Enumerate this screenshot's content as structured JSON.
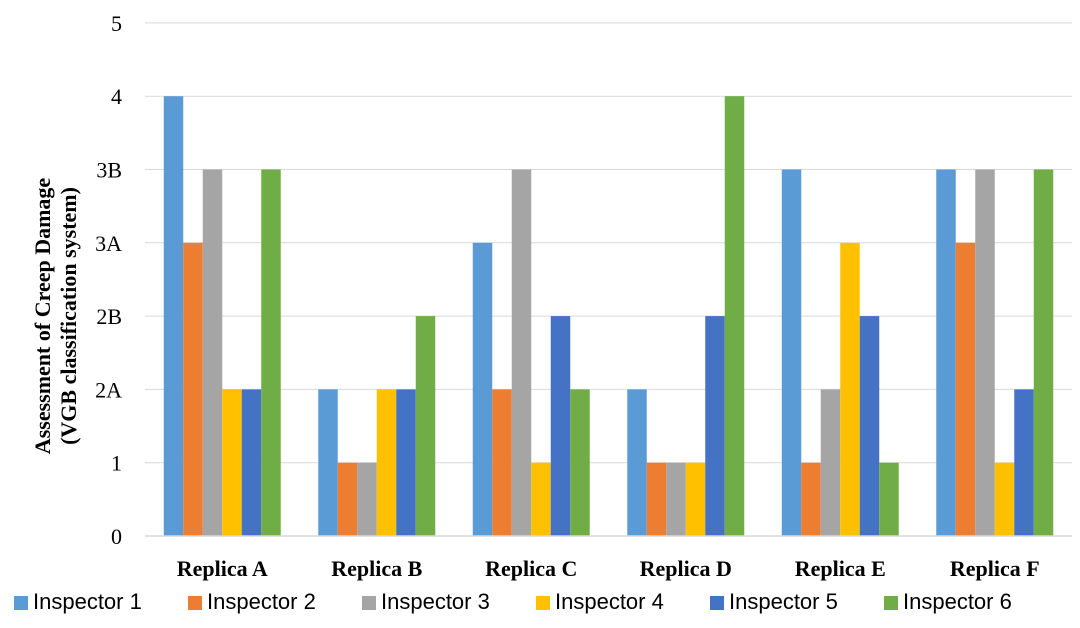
{
  "chart_data": {
    "type": "bar",
    "ylabel_line1": "Assessment of Creep Damage",
    "ylabel_line2": "(VGB classification system)",
    "y_levels": [
      "0",
      "1",
      "2A",
      "2B",
      "3A",
      "3B",
      "4",
      "5"
    ],
    "categories": [
      "Replica A",
      "Replica B",
      "Replica C",
      "Replica D",
      "Replica E",
      "Replica F"
    ],
    "series": [
      {
        "name": "Inspector 1",
        "color": "#5B9BD5",
        "values": [
          "4",
          "2A",
          "3A",
          "2A",
          "3B",
          "3B"
        ]
      },
      {
        "name": "Inspector 2",
        "color": "#ED7D31",
        "values": [
          "3A",
          "1",
          "2A",
          "1",
          "1",
          "3A"
        ]
      },
      {
        "name": "Inspector 3",
        "color": "#A5A5A5",
        "values": [
          "3B",
          "1",
          "3B",
          "1",
          "2A",
          "3B"
        ]
      },
      {
        "name": "Inspector 4",
        "color": "#FFC000",
        "values": [
          "2A",
          "2A",
          "1",
          "1",
          "3A",
          "1"
        ]
      },
      {
        "name": "Inspector 5",
        "color": "#4472C4",
        "values": [
          "2A",
          "2A",
          "2B",
          "2B",
          "2B",
          "2A"
        ]
      },
      {
        "name": "Inspector 6",
        "color": "#70AD47",
        "values": [
          "3B",
          "2B",
          "2A",
          "4",
          "1",
          "3B"
        ]
      }
    ],
    "grid": true,
    "legend_position": "bottom"
  }
}
